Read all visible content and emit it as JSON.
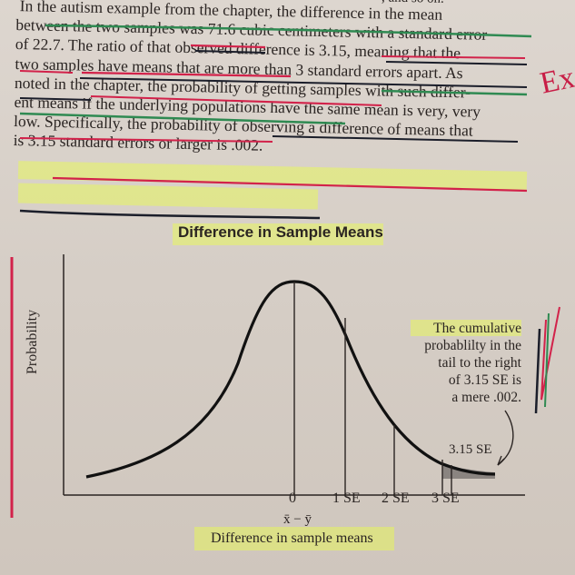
{
  "paragraph": {
    "lines": [
      "In the autism example from the chapter, the difference in the mean",
      "between the two samples was 71.6 cubic centimeters with a standard error",
      "of 22.7. The ratio of that observed difference is 3.15, meaning that the",
      "two samples have means that are more than 3 standard errors apart. As",
      "noted in the chapter, the probability of getting samples with such differ-",
      "ent means if the underlying populations have the same mean is very, very",
      "low. Specifically, the probability of observing a difference of means that",
      "is 3.15 standard errors or larger is .002."
    ],
    "top_fragment": ", and so on."
  },
  "figure": {
    "title": "Difference in Sample Means",
    "y_axis_label": "Probability",
    "x_ticks": [
      "0",
      "1 SE",
      "2 SE",
      "3 SE"
    ],
    "x_symbol": "x̄ − ȳ",
    "x_axis_label": "Difference in sample means",
    "callout_lines": [
      "The cumulative",
      "probablilty in the",
      "tail to the right",
      "of 3.15 SE is",
      "a mere .002."
    ],
    "tail_label": "3.15 SE",
    "tail_shade_color": "#8a8480"
  },
  "annotations": {
    "margin_note": "Ex",
    "highlight_color": "#eaff3c",
    "underline_red": "#d2224a",
    "underline_green": "#2f8a52",
    "pen_dark": "#1b1e2a"
  }
}
